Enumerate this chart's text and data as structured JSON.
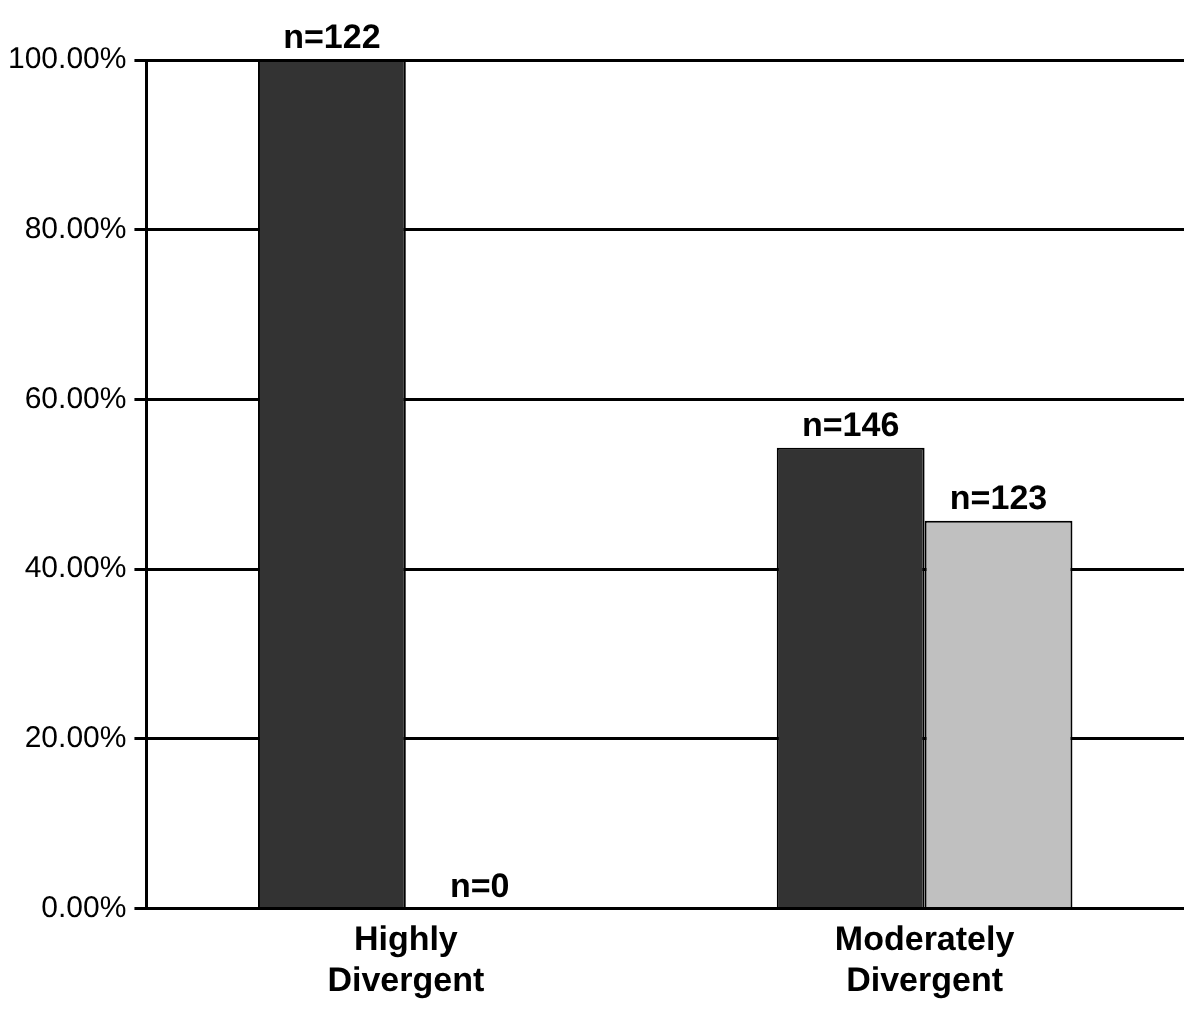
{
  "chart_data": {
    "type": "bar",
    "categories": [
      "Highly Divergent",
      "Moderately Divergent"
    ],
    "series": [
      {
        "color": "#333333",
        "values": [
          100,
          54.3
        ]
      },
      {
        "color": "#c0c0c0",
        "values": [
          0,
          45.7
        ]
      }
    ],
    "annotations": [
      {
        "text": "n=122",
        "x": "Highly Divergent",
        "y": 100
      },
      {
        "text": "n=0",
        "x": "Highly Divergent",
        "y": 0
      },
      {
        "text": "n=146",
        "x": "Moderately Divergent",
        "y": 54.3
      },
      {
        "text": "n=123",
        "x": "Moderately Divergent",
        "y": 45.7
      }
    ],
    "ylim": [
      0,
      100
    ],
    "yticks": [
      {
        "value": 0,
        "label": "0.00%"
      },
      {
        "value": 20,
        "label": "20.00%"
      },
      {
        "value": 40,
        "label": "40.00%"
      },
      {
        "value": 60,
        "label": "60.00%"
      },
      {
        "value": 80,
        "label": "80.00%"
      },
      {
        "value": 100,
        "label": "100.00%"
      }
    ],
    "grid": "y",
    "legend": false
  }
}
